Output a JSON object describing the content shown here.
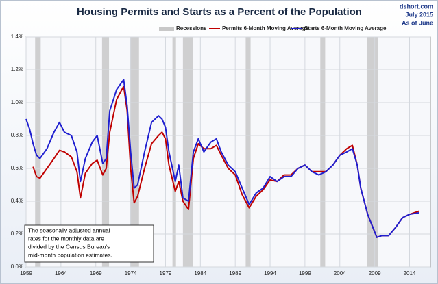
{
  "chart_data": {
    "type": "line",
    "title": "Housing Permits and Starts as a Percent of the Population",
    "source": [
      "dshort.com",
      "July 2015",
      "As of June"
    ],
    "note": [
      "The seasonally adjusted annual",
      "rates for the monthly data are",
      "divided by the Census Bureau's",
      "mid-month  population estimates."
    ],
    "recession_label": "Recessions",
    "recession_color": "#c8c8c8",
    "recessions": [
      [
        1960.3,
        1961.1
      ],
      [
        1969.9,
        1970.9
      ],
      [
        1973.9,
        1975.2
      ],
      [
        1980.0,
        1980.5
      ],
      [
        1981.5,
        1982.9
      ],
      [
        1990.5,
        1991.2
      ],
      [
        2001.2,
        2001.9
      ],
      [
        2007.9,
        2009.5
      ]
    ],
    "x": [
      1959,
      1959.5,
      1960,
      1960.5,
      1961,
      1962,
      1963,
      1963.8,
      1964.5,
      1965.5,
      1966.3,
      1966.8,
      1967.5,
      1968.5,
      1969.2,
      1970,
      1970.5,
      1971,
      1972,
      1973,
      1973.5,
      1974,
      1974.5,
      1975,
      1976,
      1977,
      1978,
      1978.5,
      1979,
      1979.5,
      1980.4,
      1980.9,
      1981.5,
      1982.3,
      1983,
      1983.7,
      1984.5,
      1985.5,
      1986.3,
      1987,
      1988,
      1989,
      1990,
      1991,
      1992,
      1993,
      1994,
      1995,
      1996,
      1997,
      1998,
      1999,
      2000,
      2001,
      2002,
      2003,
      2004,
      2005,
      2005.8,
      2006.5,
      2007,
      2008,
      2009.3,
      2010,
      2011,
      2012,
      2013,
      2014,
      2015.4
    ],
    "series": [
      {
        "name": "Permits 6-Month Moving Average",
        "color": "#c00000",
        "values": [
          null,
          null,
          0.61,
          0.55,
          0.54,
          0.6,
          0.66,
          0.71,
          0.7,
          0.67,
          0.58,
          0.42,
          0.57,
          0.63,
          0.65,
          0.56,
          0.6,
          0.82,
          1.02,
          1.1,
          0.95,
          0.6,
          0.39,
          0.43,
          0.6,
          0.75,
          0.8,
          0.82,
          0.78,
          0.62,
          0.46,
          0.52,
          0.4,
          0.35,
          0.66,
          0.75,
          0.72,
          0.72,
          0.74,
          0.68,
          0.6,
          0.56,
          0.44,
          0.36,
          0.43,
          0.47,
          0.53,
          0.52,
          0.56,
          0.56,
          0.6,
          0.62,
          0.58,
          0.58,
          0.58,
          0.62,
          0.68,
          0.72,
          0.74,
          0.62,
          0.48,
          0.32,
          0.18,
          0.19,
          0.19,
          0.24,
          0.3,
          0.32,
          0.34
        ]
      },
      {
        "name": "Starts 6-Month Moving Average",
        "color": "#1f1fd0",
        "values": [
          0.9,
          0.84,
          0.75,
          0.68,
          0.66,
          0.72,
          0.82,
          0.88,
          0.82,
          0.8,
          0.7,
          0.52,
          0.66,
          0.76,
          0.8,
          0.63,
          0.66,
          0.95,
          1.08,
          1.14,
          0.98,
          0.7,
          0.48,
          0.5,
          0.7,
          0.88,
          0.92,
          0.9,
          0.85,
          0.7,
          0.52,
          0.62,
          0.42,
          0.4,
          0.7,
          0.78,
          0.7,
          0.76,
          0.78,
          0.7,
          0.62,
          0.58,
          0.48,
          0.38,
          0.45,
          0.48,
          0.55,
          0.52,
          0.55,
          0.55,
          0.6,
          0.62,
          0.58,
          0.56,
          0.58,
          0.62,
          0.68,
          0.7,
          0.72,
          0.62,
          0.48,
          0.32,
          0.18,
          0.19,
          0.19,
          0.24,
          0.3,
          0.32,
          0.33
        ]
      }
    ],
    "xlim": [
      1959,
      2017
    ],
    "xticks": [
      1959,
      1964,
      1969,
      1974,
      1979,
      1984,
      1989,
      1994,
      1999,
      2004,
      2009,
      2014
    ],
    "ylim": [
      0,
      1.4
    ],
    "yticks": [
      {
        "value": 0,
        "label": "0.0%"
      },
      {
        "value": 0.2,
        "label": "0.2%"
      },
      {
        "value": 0.4,
        "label": "0.4%"
      },
      {
        "value": 0.6,
        "label": "0.6%"
      },
      {
        "value": 0.8,
        "label": "0.8%"
      },
      {
        "value": 1.0,
        "label": "1.0%"
      },
      {
        "value": 1.2,
        "label": "1.2%"
      },
      {
        "value": 1.4,
        "label": "1.4%"
      }
    ],
    "grid": true,
    "legend": "top"
  }
}
